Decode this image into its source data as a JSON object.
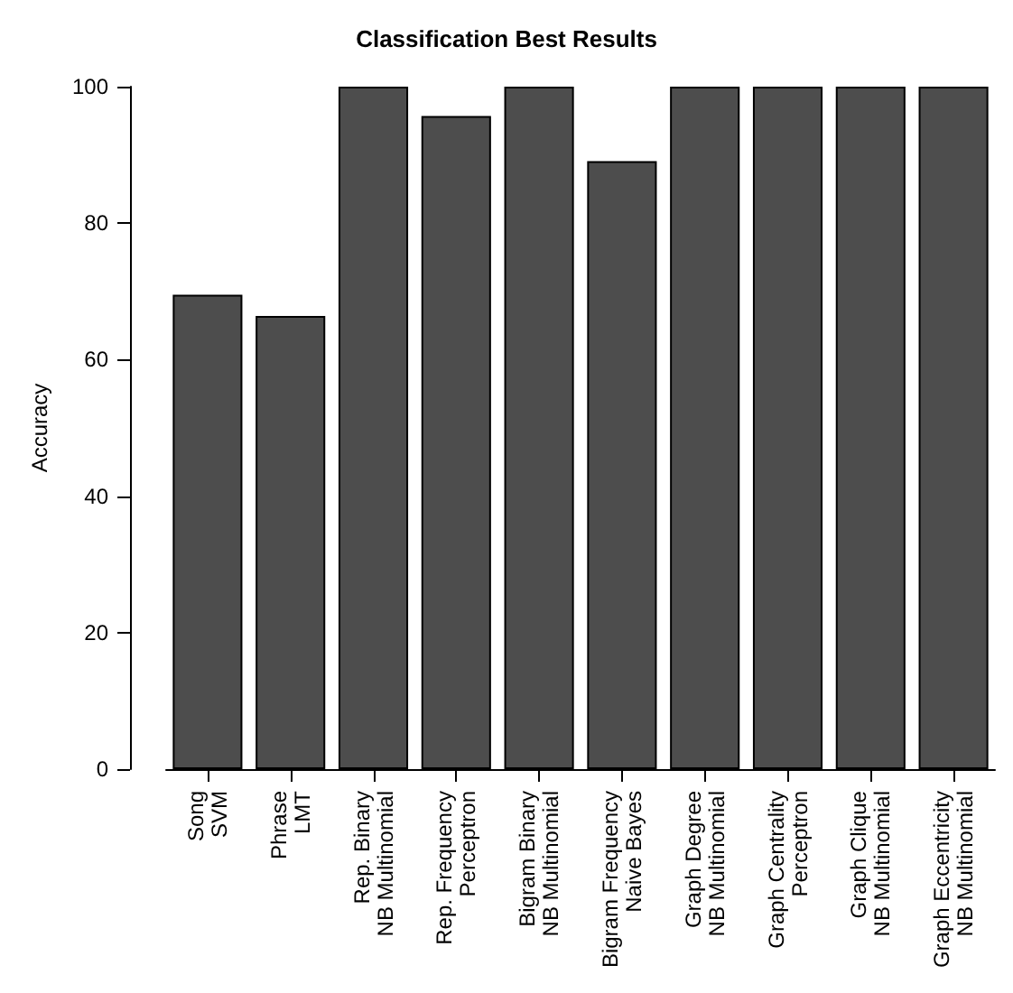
{
  "chart_data": {
    "type": "bar",
    "title": "Classification Best Results",
    "ylabel": "Accuracy",
    "categories": [
      "Song\nSVM",
      "Phrase\nLMT",
      "Rep. Binary\nNB Multinomial",
      "Rep. Frequency\nPerceptron",
      "Bigram Binary\nNB Multinomial",
      "Bigram Frequency\nNaive Bayes",
      "Graph Degree\nNB Multinomial",
      "Graph Centrality\nPerceptron",
      "Graph Clique\nNB Multinomial",
      "Graph Eccentricity\nNB Multinomial"
    ],
    "values": [
      69.5,
      66.4,
      100,
      95.7,
      100,
      89.1,
      100,
      100,
      100,
      100
    ],
    "color": "#4d4d4d",
    "ylim": [
      0,
      100
    ],
    "yticks": [
      0,
      20,
      40,
      60,
      80,
      100
    ]
  }
}
